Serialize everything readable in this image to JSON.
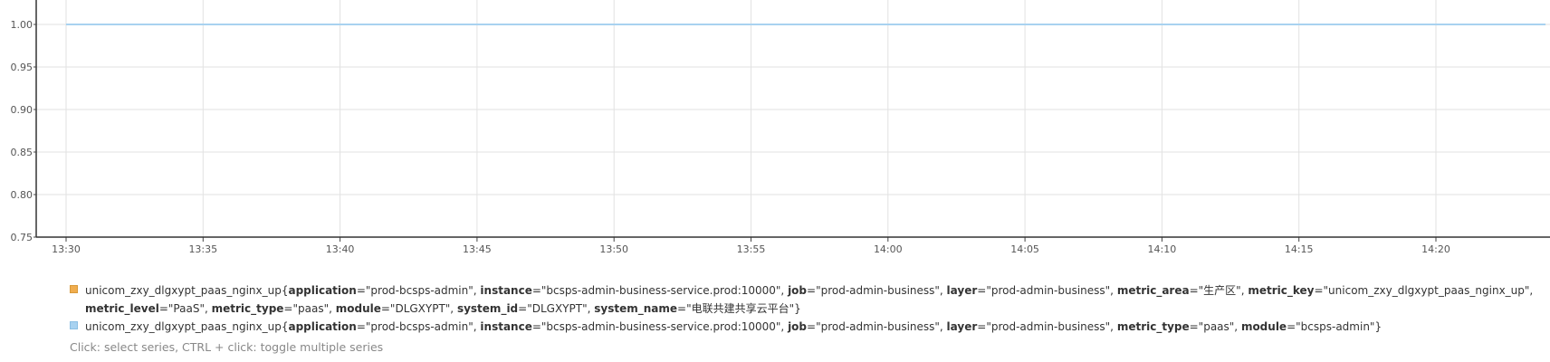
{
  "chart_data": {
    "type": "line",
    "y_ticks": [
      0.75,
      0.8,
      0.85,
      0.9,
      0.95,
      1.0
    ],
    "y_tick_labels": [
      "0.75",
      "0.80",
      "0.85",
      "0.90",
      "0.95",
      "1.00"
    ],
    "ylim": [
      0.75,
      1.0
    ],
    "x_tick_labels": [
      "13:30",
      "13:35",
      "13:40",
      "13:45",
      "13:50",
      "13:55",
      "14:00",
      "14:05",
      "14:10",
      "14:15",
      "14:20"
    ],
    "xlim": [
      "13:30",
      "14:24"
    ],
    "grid": true,
    "series": [
      {
        "metric": "unicom_zxy_dlgxypt_paas_nginx_up",
        "color": "#f0ad4e",
        "labels": [
          {
            "key": "application",
            "value": "\"prod-bcsps-admin\""
          },
          {
            "key": "instance",
            "value": "\"bcsps-admin-business-service.prod:10000\""
          },
          {
            "key": "job",
            "value": "\"prod-admin-business\""
          },
          {
            "key": "layer",
            "value": "\"prod-admin-business\""
          },
          {
            "key": "metric_area",
            "value": "\"生产区\""
          },
          {
            "key": "metric_key",
            "value": "\"unicom_zxy_dlgxypt_paas_nginx_up\""
          },
          {
            "key": "metric_level",
            "value": "\"PaaS\""
          },
          {
            "key": "metric_type",
            "value": "\"paas\""
          },
          {
            "key": "module",
            "value": "\"DLGXYPT\""
          },
          {
            "key": "system_id",
            "value": "\"DLGXYPT\""
          },
          {
            "key": "system_name",
            "value": "\"电联共建共享云平台\""
          }
        ],
        "x": [
          "13:30",
          "14:24"
        ],
        "values": [
          1.0,
          1.0
        ]
      },
      {
        "metric": "unicom_zxy_dlgxypt_paas_nginx_up",
        "color": "#a8d2f0",
        "labels": [
          {
            "key": "application",
            "value": "\"prod-bcsps-admin\""
          },
          {
            "key": "instance",
            "value": "\"bcsps-admin-business-service.prod:10000\""
          },
          {
            "key": "job",
            "value": "\"prod-admin-business\""
          },
          {
            "key": "layer",
            "value": "\"prod-admin-business\""
          },
          {
            "key": "metric_type",
            "value": "\"paas\""
          },
          {
            "key": "module",
            "value": "\"bcsps-admin\""
          }
        ],
        "x": [
          "13:30",
          "14:24"
        ],
        "values": [
          1.0,
          1.0
        ]
      }
    ]
  },
  "legend_hint": "Click: select series, CTRL + click: toggle multiple series"
}
